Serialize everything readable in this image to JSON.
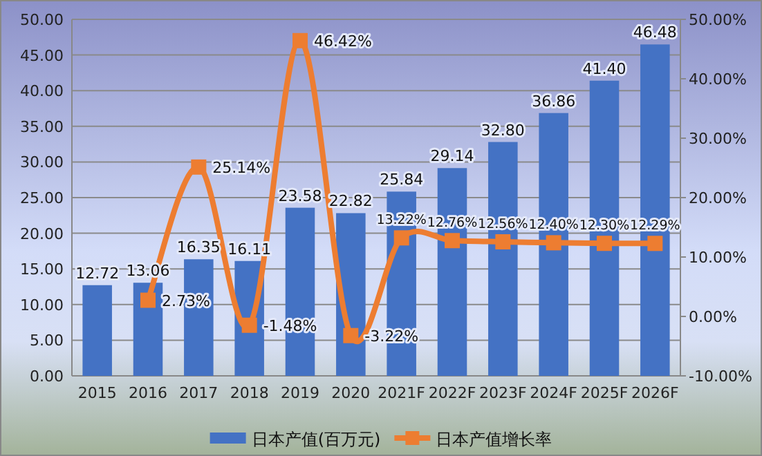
{
  "chart_data": {
    "type": "bar",
    "categories": [
      "2015",
      "2016",
      "2017",
      "2018",
      "2019",
      "2020",
      "2021F",
      "2022F",
      "2023F",
      "2024F",
      "2025F",
      "2026F"
    ],
    "series": [
      {
        "name": "日本产值(百万元)",
        "color": "#4472c4",
        "values": [
          12.72,
          13.06,
          16.35,
          16.11,
          23.58,
          22.82,
          25.84,
          29.14,
          32.8,
          36.86,
          41.4,
          46.48
        ],
        "value_labels": [
          "12.72",
          "13.06",
          "16.35",
          "16.11",
          "23.58",
          "22.82",
          "25.84",
          "29.14",
          "32.80",
          "36.86",
          "41.40",
          "46.48"
        ]
      },
      {
        "name": "日本产值增长率",
        "type": "line",
        "axis": "y2",
        "color": "#ed7d31",
        "marker": "square",
        "values": [
          null,
          2.73,
          25.14,
          -1.48,
          46.42,
          -3.22,
          13.22,
          12.76,
          12.56,
          12.4,
          12.3,
          12.29
        ],
        "value_labels": [
          null,
          "2.73%",
          "25.14%",
          "-1.48%",
          "46.42%",
          "-3.22%",
          "13.22%",
          "12.76%",
          "12.56%",
          "12.40%",
          "12.30%",
          "12.29%"
        ]
      }
    ],
    "ylim": [
      0,
      50
    ],
    "yticks": [
      {
        "value": 0,
        "label": "0.00"
      },
      {
        "value": 5,
        "label": "5.00"
      },
      {
        "value": 10,
        "label": "10.00"
      },
      {
        "value": 15,
        "label": "15.00"
      },
      {
        "value": 20,
        "label": "20.00"
      },
      {
        "value": 25,
        "label": "25.00"
      },
      {
        "value": 30,
        "label": "30.00"
      },
      {
        "value": 35,
        "label": "35.00"
      },
      {
        "value": 40,
        "label": "40.00"
      },
      {
        "value": 45,
        "label": "45.00"
      },
      {
        "value": 50,
        "label": "50.00"
      }
    ],
    "y2lim": [
      -10,
      50
    ],
    "y2ticks": [
      {
        "value": -10,
        "label": "-10.00%"
      },
      {
        "value": 0,
        "label": "0.00%"
      },
      {
        "value": 10,
        "label": "10.00%"
      },
      {
        "value": 20,
        "label": "20.00%"
      },
      {
        "value": 30,
        "label": "30.00%"
      },
      {
        "value": 40,
        "label": "40.00%"
      },
      {
        "value": 50,
        "label": "50.00%"
      }
    ],
    "grid": "y",
    "legend": "bottom"
  }
}
